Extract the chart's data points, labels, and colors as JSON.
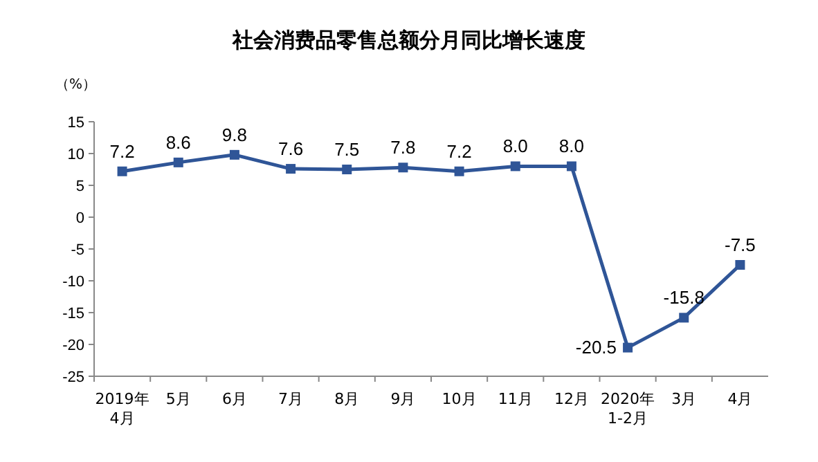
{
  "chart_data": {
    "type": "line",
    "title": "社会消费品零售总额分月同比增长速度",
    "ylabel": "（%）",
    "categories": [
      "2019年\n4月",
      "5月",
      "6月",
      "7月",
      "8月",
      "9月",
      "10月",
      "11月",
      "12月",
      "2020年\n1-2月",
      "3月",
      "4月"
    ],
    "series": [
      {
        "color": "#2f5597",
        "values": [
          7.2,
          8.6,
          9.8,
          7.6,
          7.5,
          7.8,
          7.2,
          8.0,
          8.0,
          -20.5,
          -15.8,
          -7.5
        ],
        "value_labels": [
          "7.2",
          "8.6",
          "9.8",
          "7.6",
          "7.5",
          "7.8",
          "7.2",
          "8.0",
          "8.0",
          "-20.5",
          "-15.8",
          "-7.5"
        ]
      }
    ],
    "ylim": [
      -25,
      15
    ],
    "yticks": [
      15,
      10,
      5,
      0,
      -5,
      -10,
      -15,
      -20,
      -25
    ],
    "marker": "square",
    "line_style": "solid",
    "grid": false
  }
}
